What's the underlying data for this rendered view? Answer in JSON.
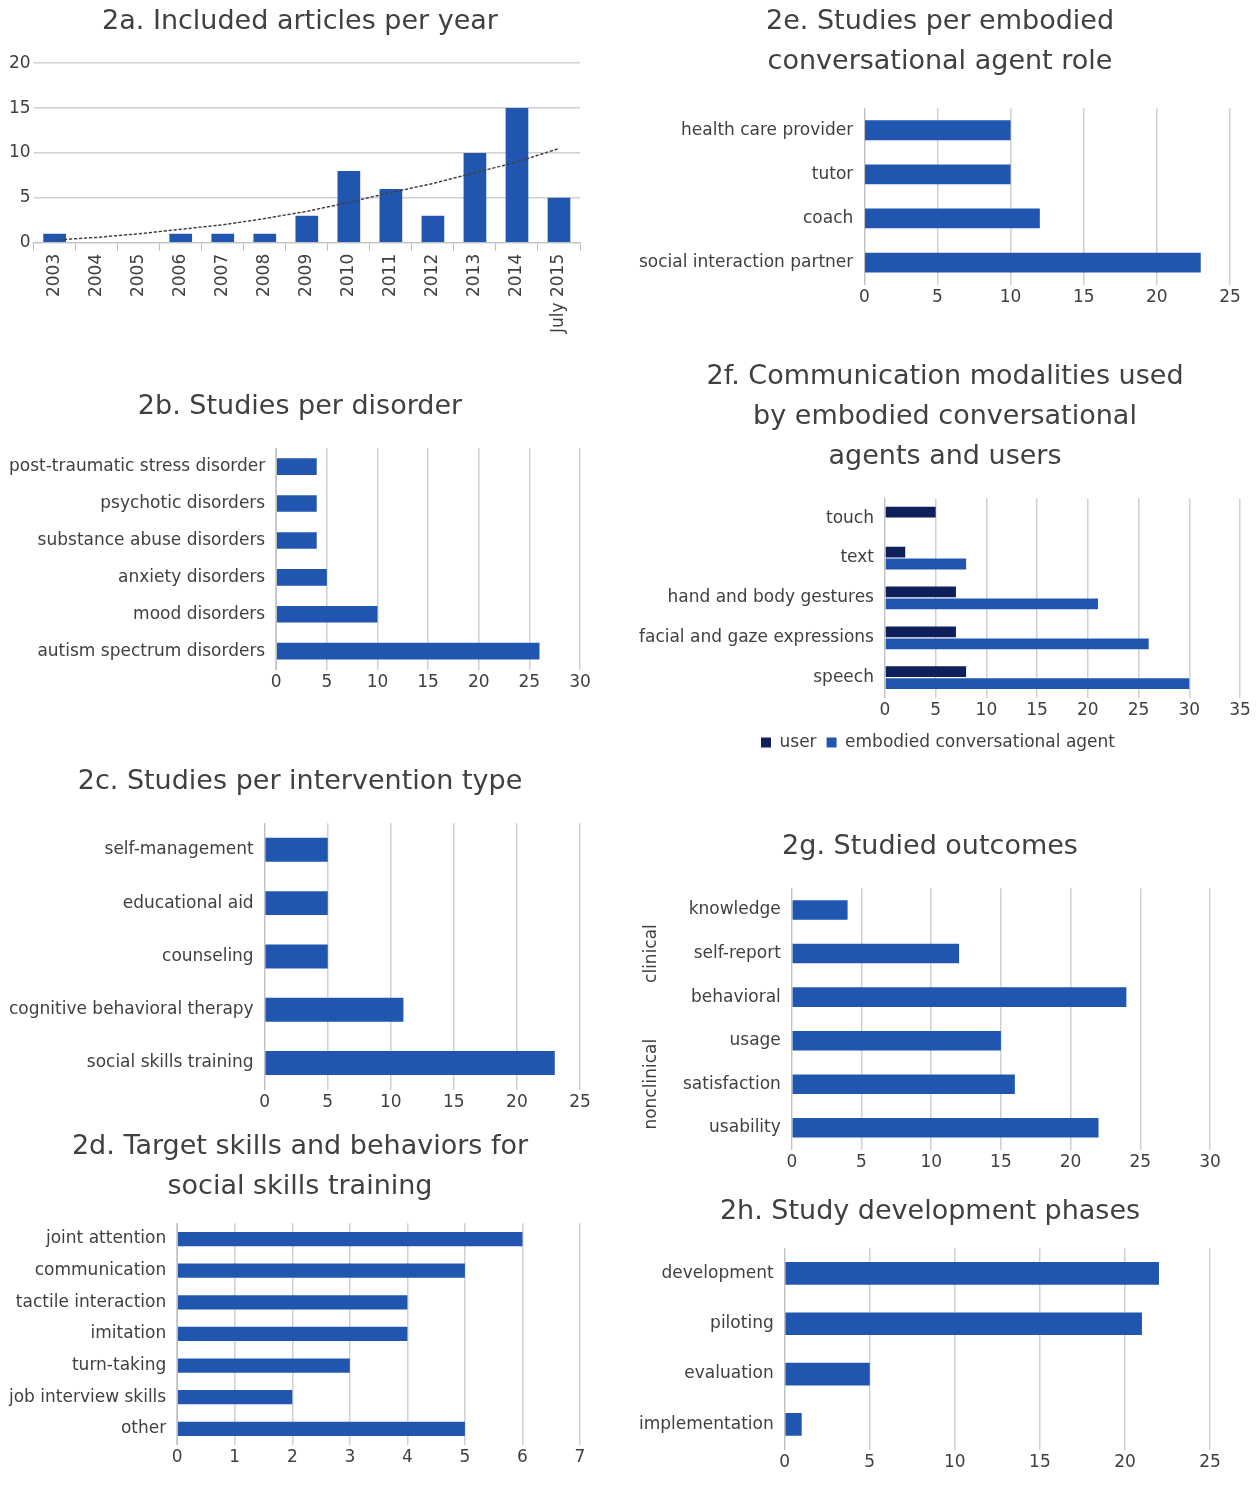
{
  "chart_data": [
    {
      "type": "bar",
      "title": "2a. Included articles per year",
      "categories": [
        "2003",
        "2004",
        "2005",
        "2006",
        "2007",
        "2008",
        "2009",
        "2010",
        "2011",
        "2012",
        "2013",
        "2014",
        "July 2015"
      ],
      "series": [
        {
          "color": "#2156b0",
          "values": [
            1,
            0,
            0,
            1,
            1,
            1,
            3,
            8,
            6,
            3,
            10,
            15,
            5
          ]
        },
        {
          "type": "line",
          "color": "#404040",
          "line_style": "dotted",
          "marker": "none",
          "values": [
            0.3,
            0.6,
            1.0,
            1.5,
            2.0,
            2.7,
            3.5,
            4.5,
            5.6,
            6.6,
            7.8,
            9,
            10.5
          ]
        }
      ],
      "ylim": [
        0,
        20
      ],
      "yticks": [
        0,
        5,
        10,
        15,
        20
      ],
      "grid": "y",
      "legend": false
    },
    {
      "type": "bar",
      "orientation": "horizontal",
      "title": "2e. Studies per embodied conversational agent role",
      "categories": [
        "health care provider",
        "tutor",
        "coach",
        "social interaction partner"
      ],
      "values": [
        10,
        10,
        12,
        23
      ],
      "color": "#2156b0",
      "xlim": [
        0,
        25
      ],
      "xticks": [
        0,
        5,
        10,
        15,
        20,
        25
      ],
      "grid": "x",
      "legend": false
    },
    {
      "type": "bar",
      "orientation": "horizontal",
      "title": "2b. Studies per disorder",
      "categories": [
        "post-traumatic stress disorder",
        "psychotic disorders",
        "substance abuse disorders",
        "anxiety disorders",
        "mood disorders",
        "autism spectrum disorders"
      ],
      "values": [
        4,
        4,
        4,
        5,
        10,
        26
      ],
      "color": "#2156b0",
      "xlim": [
        0,
        30
      ],
      "xticks": [
        0,
        5,
        10,
        15,
        20,
        25,
        30
      ],
      "grid": "x",
      "legend": false
    },
    {
      "type": "bar",
      "orientation": "horizontal",
      "title": "2f. Communication modalities used by embodied conversational agents and users",
      "categories": [
        "touch",
        "text",
        "hand and body gestures",
        "facial and gaze expressions",
        "speech"
      ],
      "series": [
        {
          "name": "user",
          "color": "#0e1f5b",
          "values": [
            5,
            2,
            7,
            7,
            8
          ]
        },
        {
          "name": "embodied conversational agent",
          "color": "#2156b0",
          "values": [
            null,
            8,
            21,
            26,
            30
          ]
        }
      ],
      "xlim": [
        0,
        35
      ],
      "xticks": [
        0,
        5,
        10,
        15,
        20,
        25,
        30,
        35
      ],
      "grid": "x",
      "legend": "bottom"
    },
    {
      "type": "bar",
      "orientation": "horizontal",
      "title": "2c. Studies per intervention type",
      "categories": [
        "self-management",
        "educational aid",
        "counseling",
        "cognitive behavioral therapy",
        "social skills training"
      ],
      "values": [
        5,
        5,
        5,
        11,
        23
      ],
      "color": "#2156b0",
      "xlim": [
        0,
        25
      ],
      "xticks": [
        0,
        5,
        10,
        15,
        20,
        25
      ],
      "grid": "x",
      "legend": false
    },
    {
      "type": "bar",
      "orientation": "horizontal",
      "title": "2g. Studied outcomes",
      "categories": [
        "knowledge",
        "self-report",
        "behavioral",
        "usage",
        "satisfaction",
        "usability"
      ],
      "values": [
        4,
        12,
        24,
        15,
        16,
        22
      ],
      "color": "#2156b0",
      "xlim": [
        0,
        30
      ],
      "xticks": [
        0,
        5,
        10,
        15,
        20,
        25,
        30
      ],
      "grid": "x",
      "legend": false,
      "annotations": [
        "clinical",
        "nonclinical"
      ]
    },
    {
      "type": "bar",
      "orientation": "horizontal",
      "title": "2d. Target skills and behaviors for social skills training",
      "categories": [
        "joint attention",
        "communication",
        "tactile interaction",
        "imitation",
        "turn-taking",
        "job interview skills",
        "other"
      ],
      "values": [
        6,
        5,
        4,
        4,
        3,
        2,
        5
      ],
      "color": "#2156b0",
      "xlim": [
        0,
        7
      ],
      "xticks": [
        0,
        1,
        2,
        3,
        4,
        5,
        6,
        7
      ],
      "grid": "x",
      "legend": false
    },
    {
      "type": "bar",
      "orientation": "horizontal",
      "title": "2h. Study development phases",
      "categories": [
        "development",
        "piloting",
        "evaluation",
        "implementation"
      ],
      "values": [
        22,
        21,
        5,
        1
      ],
      "color": "#2156b0",
      "xlim": [
        0,
        25
      ],
      "xticks": [
        0,
        5,
        10,
        15,
        20,
        25
      ],
      "grid": "x",
      "legend": false
    }
  ]
}
